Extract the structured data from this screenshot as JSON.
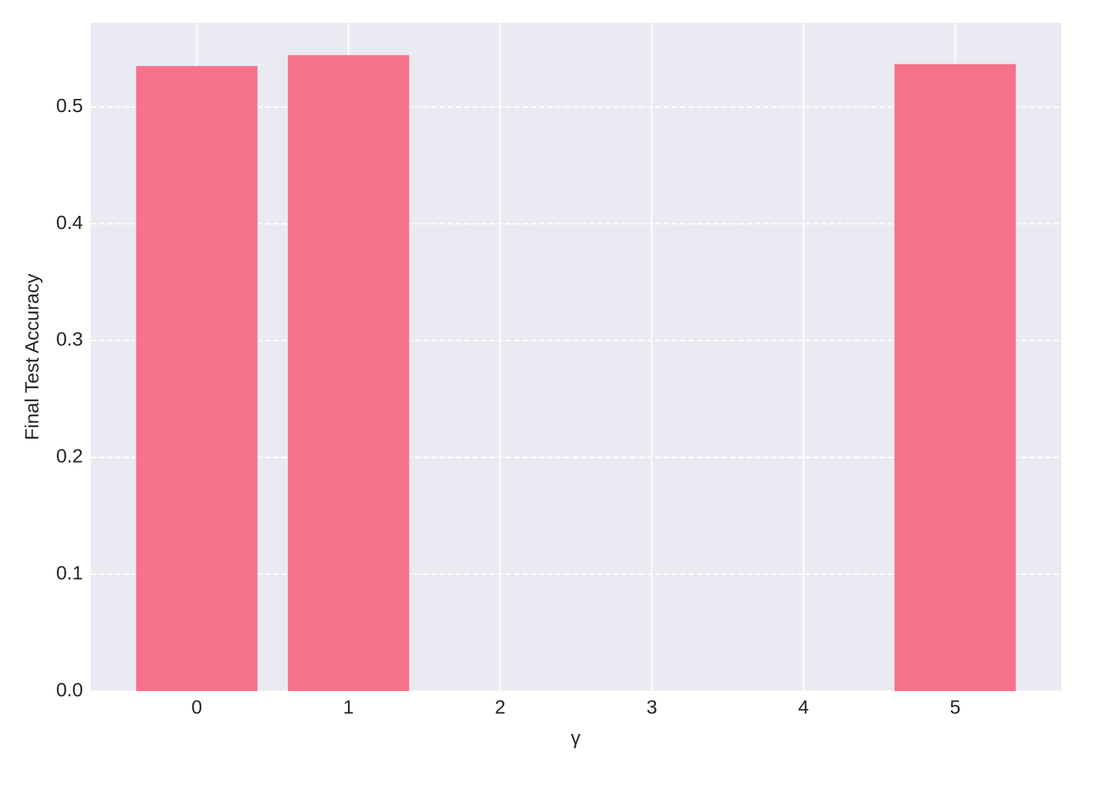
{
  "chart_data": {
    "type": "bar",
    "xlabel": "γ",
    "ylabel": "Final Test Accuracy",
    "x": [
      0,
      1,
      5
    ],
    "values": [
      0.535,
      0.5444,
      0.5367
    ],
    "color": "#f5728a",
    "xlim": [
      -0.7,
      5.7
    ],
    "xticks": [
      0,
      1,
      2,
      3,
      4,
      5
    ],
    "ylim": [
      0,
      0.572
    ],
    "yticks": [
      {
        "value": 0,
        "label": "0.0"
      },
      0.1,
      0.2,
      0.3,
      0.4,
      0.5
    ],
    "grid": true
  }
}
